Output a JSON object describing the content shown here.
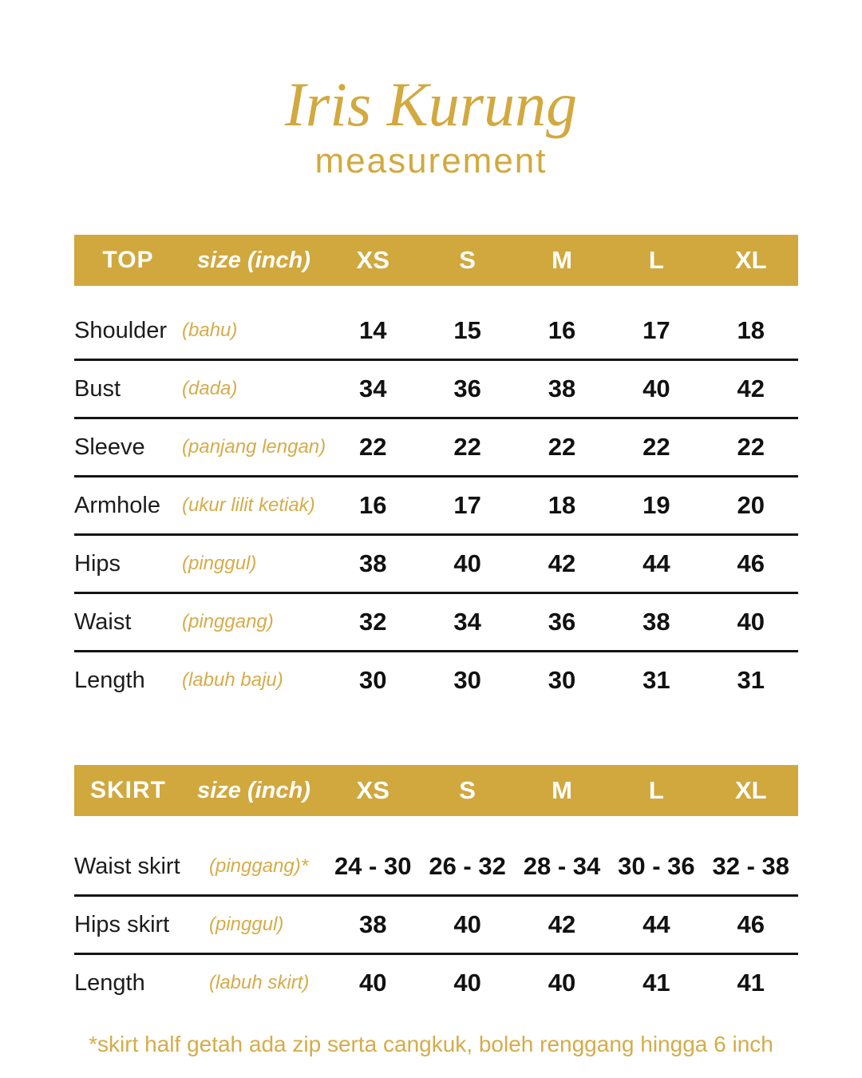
{
  "page": {
    "title": "Iris Kurung",
    "subtitle": "measurement",
    "footnote": "*skirt half getah ada zip serta cangkuk, boleh renggang hingga 6 inch"
  },
  "colors": {
    "accent_gold": "#D0A83E",
    "gold_text": "#D5AC49",
    "header_text": "#FFFFFF",
    "body_text": "#1C1C1C"
  },
  "sizes": [
    "XS",
    "S",
    "M",
    "L",
    "XL"
  ],
  "tables": [
    {
      "name": "TOP",
      "unit_label": "size (inch)",
      "rows": [
        {
          "label": "Shoulder",
          "malay": "(bahu)",
          "values": [
            "14",
            "15",
            "16",
            "17",
            "18"
          ]
        },
        {
          "label": "Bust",
          "malay": "(dada)",
          "values": [
            "34",
            "36",
            "38",
            "40",
            "42"
          ]
        },
        {
          "label": "Sleeve",
          "malay": "(panjang lengan)",
          "values": [
            "22",
            "22",
            "22",
            "22",
            "22"
          ]
        },
        {
          "label": "Armhole",
          "malay": "(ukur lilit ketiak)",
          "values": [
            "16",
            "17",
            "18",
            "19",
            "20"
          ]
        },
        {
          "label": "Hips",
          "malay": "(pinggul)",
          "values": [
            "38",
            "40",
            "42",
            "44",
            "46"
          ]
        },
        {
          "label": "Waist",
          "malay": "(pinggang)",
          "values": [
            "32",
            "34",
            "36",
            "38",
            "40"
          ]
        },
        {
          "label": "Length",
          "malay": "(labuh baju)",
          "values": [
            "30",
            "30",
            "30",
            "31",
            "31"
          ]
        }
      ]
    },
    {
      "name": "SKIRT",
      "unit_label": "size (inch)",
      "rows": [
        {
          "label": "Waist skirt",
          "malay": "(pinggang)*",
          "values": [
            "24 - 30",
            "26 - 32",
            "28 - 34",
            "30 - 36",
            "32 - 38"
          ]
        },
        {
          "label": "Hips skirt",
          "malay": "(pinggul)",
          "values": [
            "38",
            "40",
            "42",
            "44",
            "46"
          ]
        },
        {
          "label": "Length",
          "malay": "(labuh skirt)",
          "values": [
            "40",
            "40",
            "40",
            "41",
            "41"
          ]
        }
      ]
    }
  ]
}
